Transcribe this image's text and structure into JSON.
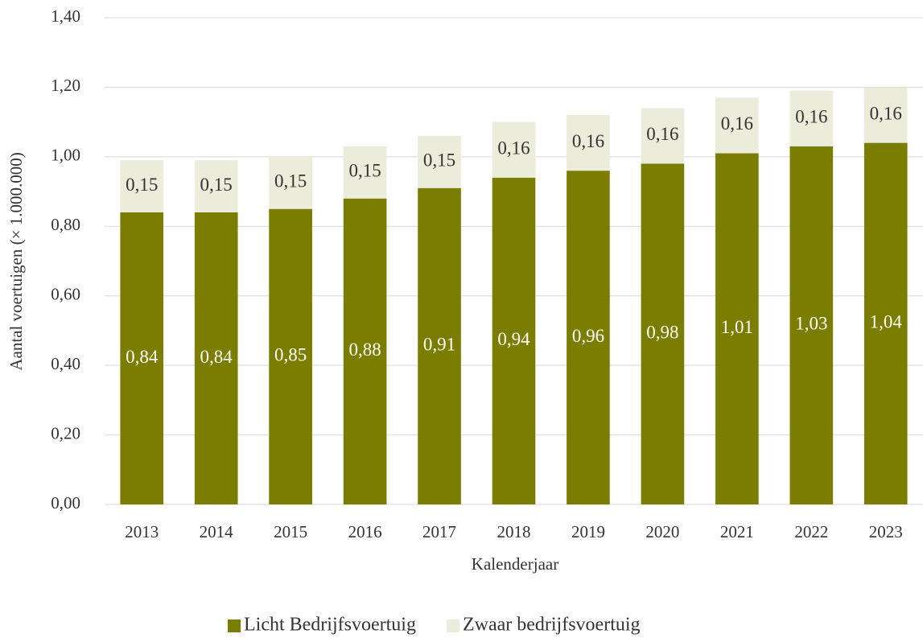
{
  "chart_data": {
    "type": "stacked_bar",
    "x_label": "Kalenderjaar",
    "y_label": "Aantal voertuigen (× 1.000.000)",
    "categories": [
      "2013",
      "2014",
      "2015",
      "2016",
      "2017",
      "2018",
      "2019",
      "2020",
      "2021",
      "2022",
      "2023"
    ],
    "series": [
      {
        "name": "Licht Bedrijfsvoertuig",
        "color": "#7a7d00",
        "label_color": "#ffffff",
        "values": [
          0.84,
          0.84,
          0.85,
          0.88,
          0.91,
          0.94,
          0.96,
          0.98,
          1.01,
          1.03,
          1.04
        ],
        "value_labels": [
          "0,84",
          "0,84",
          "0,85",
          "0,88",
          "0,91",
          "0,94",
          "0,96",
          "0,98",
          "1,01",
          "1,03",
          "1,04"
        ]
      },
      {
        "name": "Zwaar bedrijfsvoertuig",
        "color": "#ebecd9",
        "label_color": "#333333",
        "values": [
          0.15,
          0.15,
          0.15,
          0.15,
          0.15,
          0.16,
          0.16,
          0.16,
          0.16,
          0.16,
          0.16
        ],
        "value_labels": [
          "0,15",
          "0,15",
          "0,15",
          "0,15",
          "0,15",
          "0,16",
          "0,16",
          "0,16",
          "0,16",
          "0,16",
          "0,16"
        ]
      }
    ],
    "ylim": [
      0,
      1.4
    ],
    "yticks": [
      {
        "value": 0,
        "label": "0,00"
      },
      {
        "value": 0.2,
        "label": "0,20"
      },
      {
        "value": 0.4,
        "label": "0,40"
      },
      {
        "value": 0.6,
        "label": "0,60"
      },
      {
        "value": 0.8,
        "label": "0,80"
      },
      {
        "value": 1.0,
        "label": "1,00"
      },
      {
        "value": 1.2,
        "label": "1,20"
      },
      {
        "value": 1.4,
        "label": "1,40"
      }
    ],
    "grid": true,
    "legend": "bottom"
  }
}
